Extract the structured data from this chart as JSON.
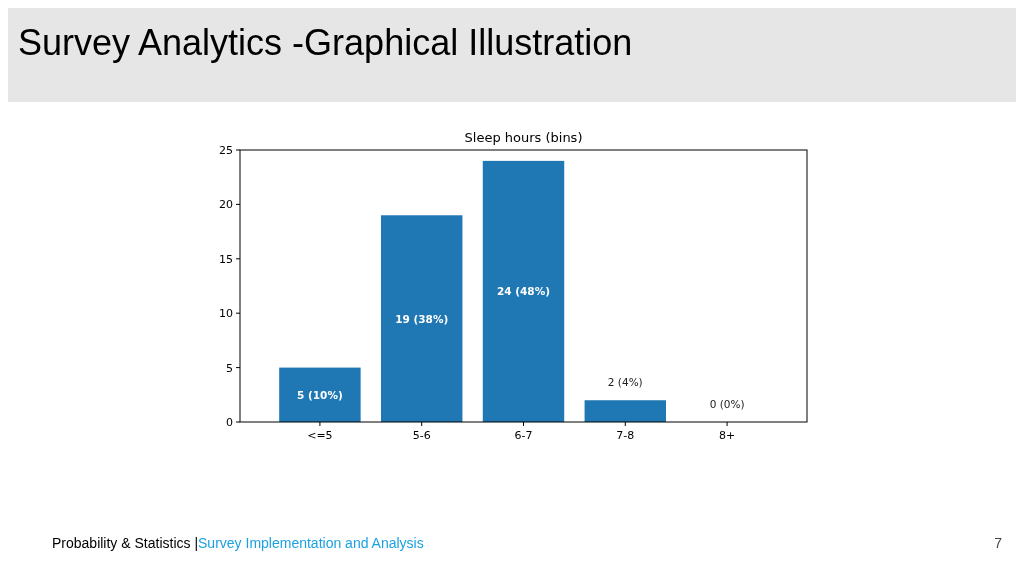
{
  "chart_data": {
    "type": "bar",
    "title": "Survey Analytics -Graphical Illustration",
    "subtitle": "Sleep hours (bins)",
    "categories": [
      "<=5",
      "5-6",
      "6-7",
      "7-8",
      "8+"
    ],
    "values": [
      5,
      19,
      24,
      2,
      0
    ],
    "value_labels": [
      "5 (10%)",
      "19 (38%)",
      "24 (48%)",
      "2 (4%)",
      "0 (0%)"
    ],
    "color": "#1f77b4",
    "ylim": [
      0,
      25
    ],
    "yticks": [
      0,
      5,
      10,
      15,
      20,
      25
    ],
    "annotations": [
      "Probability & Statistics |",
      "Survey Implementation and Analysis",
      "7"
    ]
  }
}
